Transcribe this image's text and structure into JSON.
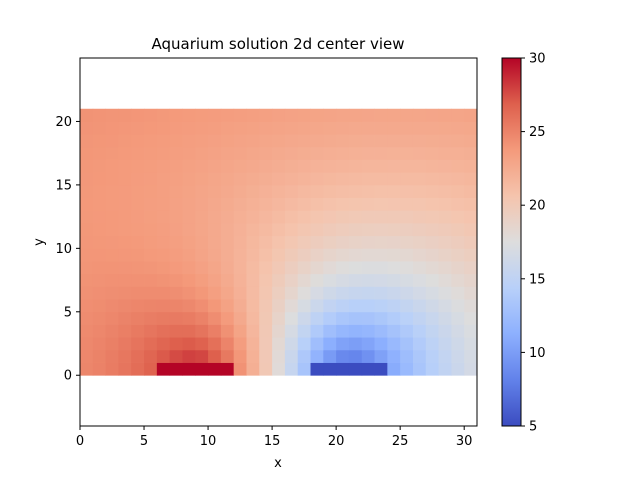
{
  "chart_data": {
    "type": "heatmap",
    "title": "Aquarium solution 2d center view",
    "xlabel": "x",
    "ylabel": "y",
    "xlim": [
      0,
      31
    ],
    "ylim": [
      -4,
      25
    ],
    "xticks": [
      0,
      5,
      10,
      15,
      20,
      25,
      30
    ],
    "yticks": [
      0,
      5,
      10,
      15,
      20
    ],
    "grid": false,
    "colormap": "coolwarm",
    "colorbar": {
      "vmin": 5,
      "vmax": 30,
      "ticks": [
        5,
        10,
        15,
        20,
        25,
        30
      ]
    },
    "data_extent": {
      "x": [
        0,
        31
      ],
      "y": [
        0,
        21
      ]
    },
    "field": {
      "ambient": 25.2,
      "top_value": 25.6,
      "heater": {
        "x": [
          6,
          12
        ],
        "y": [
          0,
          1
        ],
        "value": 30
      },
      "cooler": {
        "x": [
          18,
          24
        ],
        "y": [
          0,
          1
        ],
        "value": 5
      }
    }
  }
}
